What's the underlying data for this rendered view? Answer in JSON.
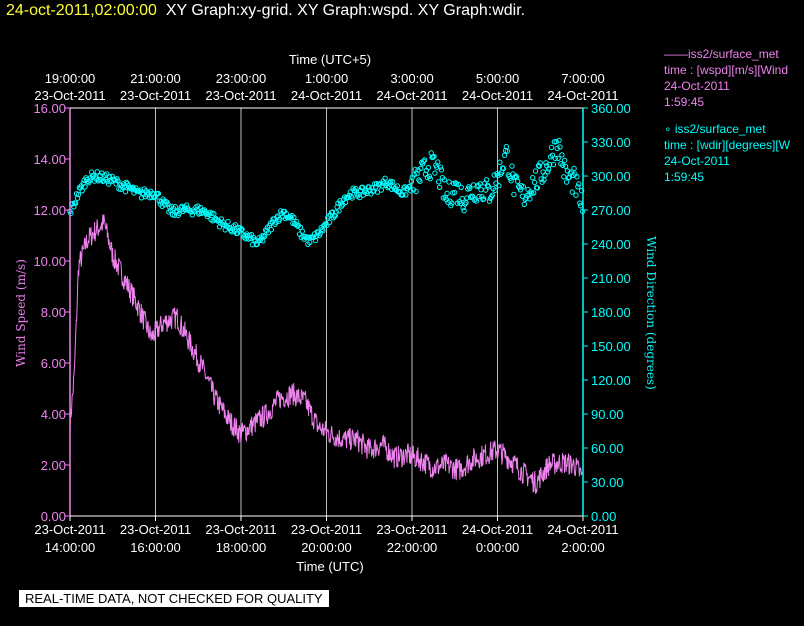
{
  "header": {
    "timestamp": "24-oct-2011,02:00:00",
    "graphs": "XY Graph:xy-grid.  XY Graph:wspd.  XY Graph:wdir."
  },
  "legend": [
    {
      "line1": "——iss2/surface_met",
      "line2": "time : [wspd][m/s][Wind",
      "line3": "24-Oct-2011",
      "line4": "1:59:45"
    },
    {
      "line1": "∘  iss2/surface_met",
      "line2": "time : [wdir][degrees][W",
      "line3": "24-Oct-2011",
      "line4": "1:59:45"
    }
  ],
  "footer": {
    "banner": "REAL-TIME DATA, NOT CHECKED FOR QUALITY"
  },
  "colors": {
    "wspd": "#ee82ee",
    "wdir": "#00ffff",
    "grid": "#ffffff",
    "background": "#000000"
  },
  "chart_data": {
    "type": "line",
    "xlabel_bottom": "Time (UTC)",
    "xlabel_top": "Time (UTC+5)",
    "ylabel_left": "Wind Speed (m/s)",
    "ylabel_right": "Wind Direction (degrees)",
    "x_range_hours": [
      14,
      26
    ],
    "ylim_left": [
      0,
      16
    ],
    "ylim_right": [
      0,
      360
    ],
    "left_ticks": [
      "0.00",
      "2.00",
      "4.00",
      "6.00",
      "8.00",
      "10.00",
      "12.00",
      "14.00",
      "16.00"
    ],
    "right_ticks": [
      "0.00",
      "30.00",
      "60.00",
      "90.00",
      "120.00",
      "150.00",
      "180.00",
      "210.00",
      "240.00",
      "270.00",
      "300.00",
      "330.00",
      "360.00"
    ],
    "bottom_ticks": [
      {
        "date": "23-Oct-2011",
        "time": "14:00:00"
      },
      {
        "date": "23-Oct-2011",
        "time": "16:00:00"
      },
      {
        "date": "23-Oct-2011",
        "time": "18:00:00"
      },
      {
        "date": "23-Oct-2011",
        "time": "20:00:00"
      },
      {
        "date": "23-Oct-2011",
        "time": "22:00:00"
      },
      {
        "date": "24-Oct-2011",
        "time": "0:00:00"
      },
      {
        "date": "24-Oct-2011",
        "time": "2:00:00"
      }
    ],
    "top_ticks": [
      {
        "time": "19:00:00",
        "date": "23-Oct-2011"
      },
      {
        "time": "21:00:00",
        "date": "23-Oct-2011"
      },
      {
        "time": "23:00:00",
        "date": "23-Oct-2011"
      },
      {
        "time": "1:00:00",
        "date": "24-Oct-2011"
      },
      {
        "time": "3:00:00",
        "date": "24-Oct-2011"
      },
      {
        "time": "5:00:00",
        "date": "24-Oct-2011"
      },
      {
        "time": "7:00:00",
        "date": "24-Oct-2011"
      }
    ],
    "series": [
      {
        "name": "iss2/surface_met wspd",
        "axis": "left",
        "style": "line",
        "x": [
          14.0,
          14.1,
          14.2,
          14.4,
          14.6,
          14.8,
          15.0,
          15.3,
          15.6,
          15.9,
          16.2,
          16.5,
          16.8,
          17.1,
          17.4,
          17.7,
          18.0,
          18.3,
          18.6,
          18.9,
          19.2,
          19.5,
          19.8,
          20.1,
          20.4,
          20.7,
          21.0,
          21.3,
          21.6,
          21.9,
          22.2,
          22.5,
          22.8,
          23.1,
          23.4,
          23.7,
          24.0,
          24.3,
          24.6,
          24.9,
          25.2,
          25.5,
          25.8,
          26.0
        ],
        "y": [
          3.6,
          5.5,
          9.8,
          10.8,
          11.2,
          11.5,
          10.2,
          9.2,
          8.2,
          7.0,
          7.6,
          7.8,
          6.8,
          5.8,
          4.6,
          3.8,
          3.2,
          3.6,
          4.0,
          4.6,
          4.8,
          4.5,
          3.5,
          3.2,
          3.0,
          3.0,
          2.6,
          2.8,
          2.3,
          2.4,
          2.2,
          1.9,
          2.0,
          1.8,
          2.2,
          2.4,
          2.6,
          2.2,
          1.7,
          1.3,
          2.0,
          2.1,
          2.0,
          1.5
        ]
      },
      {
        "name": "iss2/surface_met wdir",
        "axis": "right",
        "style": "points",
        "x": [
          14.0,
          14.2,
          14.4,
          14.6,
          14.8,
          15.0,
          15.2,
          15.4,
          15.6,
          15.8,
          16.0,
          16.2,
          16.4,
          16.6,
          16.8,
          17.0,
          17.2,
          17.4,
          17.6,
          17.8,
          18.0,
          18.2,
          18.4,
          18.6,
          18.8,
          19.0,
          19.2,
          19.4,
          19.6,
          19.8,
          20.0,
          20.2,
          20.4,
          20.6,
          20.8,
          21.0,
          21.2,
          21.4,
          21.6,
          21.8,
          22.0,
          22.2,
          22.4,
          22.6,
          22.8,
          23.0,
          23.2,
          23.4,
          23.6,
          23.8,
          24.0,
          24.2,
          24.4,
          24.6,
          24.8,
          25.0,
          25.2,
          25.4,
          25.6,
          25.8,
          26.0
        ],
        "y": [
          268,
          285,
          298,
          300,
          298,
          296,
          292,
          289,
          284,
          285,
          285,
          275,
          268,
          270,
          270,
          270,
          268,
          262,
          257,
          254,
          250,
          245,
          240,
          250,
          262,
          268,
          262,
          250,
          242,
          248,
          258,
          268,
          280,
          285,
          285,
          288,
          290,
          295,
          290,
          285,
          292,
          300,
          310,
          305,
          280,
          290,
          280,
          288,
          290,
          285,
          298,
          320,
          290,
          282,
          292,
          300,
          312,
          330,
          300,
          295,
          272
        ]
      }
    ]
  }
}
